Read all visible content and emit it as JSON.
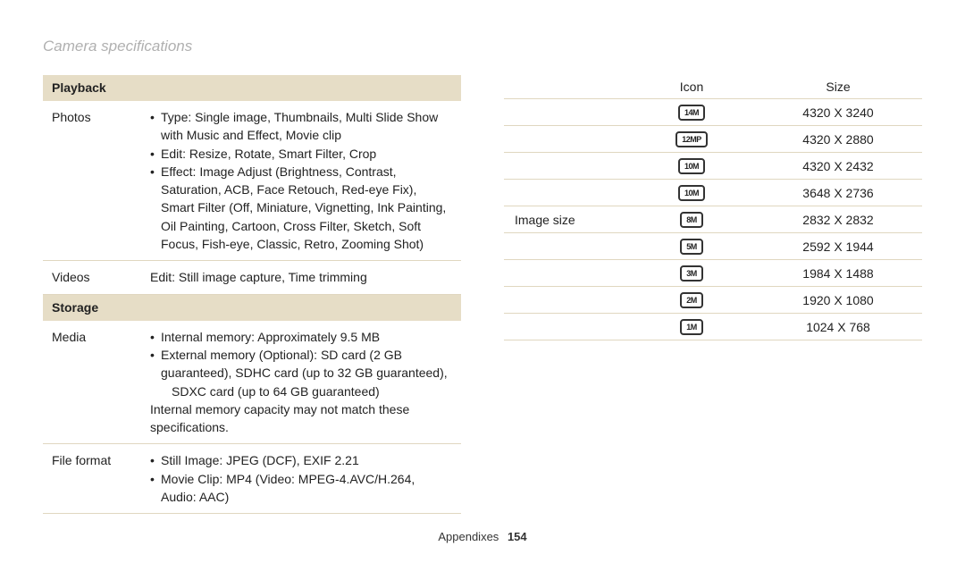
{
  "title": "Camera specifications",
  "left": {
    "playback_header": "Playback",
    "photos_label": "Photos",
    "photos_items": {
      "type": "Type: Single image, Thumbnails, Multi Slide Show with Music and Effect, Movie clip",
      "edit": "Edit: Resize, Rotate, Smart Filter, Crop",
      "effect": "Effect: Image Adjust (Brightness, Contrast, Saturation, ACB, Face Retouch, Red-eye Fix), Smart Filter (Off, Miniature, Vignetting, Ink Painting, Oil Painting, Cartoon, Cross Filter, Sketch, Soft Focus, Fish-eye, Classic, Retro, Zooming Shot)"
    },
    "videos_label": "Videos",
    "videos_text": "Edit: Still image capture, Time trimming",
    "storage_header": "Storage",
    "media_label": "Media",
    "media_items": {
      "internal": "Internal memory: Approximately 9.5 MB",
      "external": "External memory (Optional): SD card (2 GB guaranteed), SDHC card (up to 32 GB guaranteed),",
      "sdxc": "SDXC card (up to 64 GB guaranteed)"
    },
    "media_note": "Internal memory capacity may not match these specifications.",
    "fileformat_label": "File format",
    "fileformat_items": {
      "still": "Still Image: JPEG (DCF), EXIF 2.21",
      "movie": "Movie Clip: MP4 (Video: MPEG-4.AVC/H.264, Audio: AAC)"
    }
  },
  "right": {
    "rowlabel": "Image size",
    "icon_header": "Icon",
    "size_header": "Size",
    "rows": [
      {
        "badge": "14M",
        "size": "4320 X 3240"
      },
      {
        "badge": "12MP",
        "size": "4320 X 2880"
      },
      {
        "badge": "10M",
        "size": "4320 X 2432"
      },
      {
        "badge": "10M",
        "size": "3648 X 2736"
      },
      {
        "badge": "8M",
        "size": "2832 X 2832"
      },
      {
        "badge": "5M",
        "size": "2592 X 1944"
      },
      {
        "badge": "3M",
        "size": "1984 X 1488"
      },
      {
        "badge": "2M",
        "size": "1920 X 1080"
      },
      {
        "badge": "1M",
        "size": "1024 X 768"
      }
    ]
  },
  "footer": {
    "section": "Appendixes",
    "page": "154"
  },
  "colors": {
    "header_bg": "#e6ddc6",
    "border": "#e0d7c0",
    "title": "#b0b0b0"
  }
}
